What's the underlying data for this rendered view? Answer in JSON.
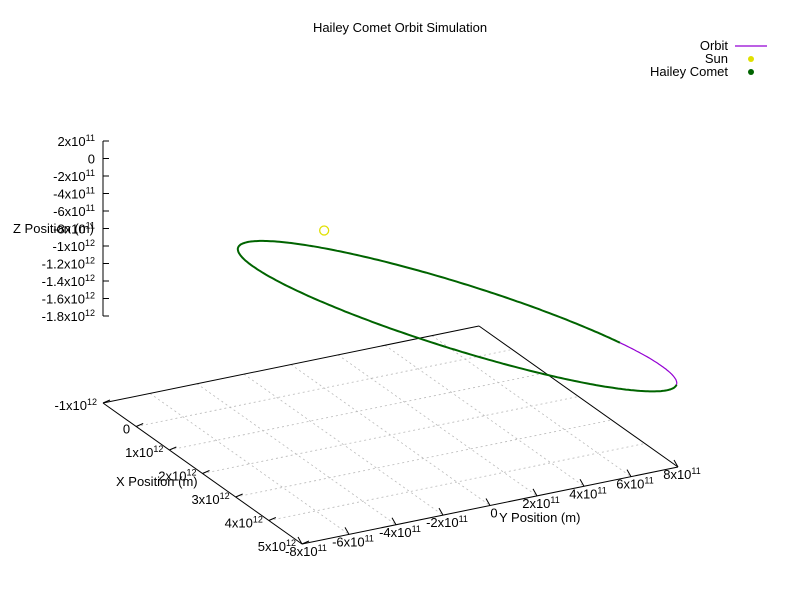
{
  "chart_data": {
    "type": "line",
    "subtype": "3d-parametric-orbit",
    "title": "Hailey Comet Orbit Simulation",
    "xlabel": "X Position (m)",
    "ylabel": "Y Position (m)",
    "zlabel": "Z Position (m)",
    "xlim": [
      -1000000000000.0,
      5000000000000.0
    ],
    "ylim": [
      -800000000000.0,
      800000000000.0
    ],
    "zlim": [
      -1800000000000.0,
      200000000000.0
    ],
    "grid": true,
    "legend_position": "top-right",
    "x_tick_labels": [
      "-1x10^12",
      "0",
      "1x10^12",
      "2x10^12",
      "3x10^12",
      "4x10^12",
      "5x10^12"
    ],
    "y_tick_labels": [
      "-8x10^11",
      "-6x10^11",
      "-4x10^11",
      "-2x10^11",
      "0",
      "2x10^11",
      "4x10^11",
      "6x10^11",
      "8x10^11"
    ],
    "z_tick_labels": [
      "2x10^11",
      "0",
      "-2x10^11",
      "-4x10^11",
      "-6x10^11",
      "-8x10^11",
      "-1x10^12",
      "-1.2x10^12",
      "-1.4x10^12",
      "-1.6x10^12",
      "-1.8x10^12"
    ],
    "series": [
      {
        "name": "Orbit",
        "kind": "line",
        "color": "#9400d3",
        "orbit": {
          "center": [
            2370000000000.0,
            232000000000.0,
            -470000000000.0
          ],
          "semi_axis_u": [
            1975000000000.0,
            413000000000.0,
            0.0
          ],
          "semi_axis_v": [
            -160000000000.0,
            650000000000.0,
            -1205000000000.0
          ]
        }
      },
      {
        "name": "Sun",
        "kind": "points",
        "color": "#e0e000",
        "points": [
          [
            0,
            0,
            0
          ]
        ]
      },
      {
        "name": "Hailey Comet",
        "kind": "points",
        "color": "#006400",
        "points_from": "Orbit"
      }
    ]
  }
}
